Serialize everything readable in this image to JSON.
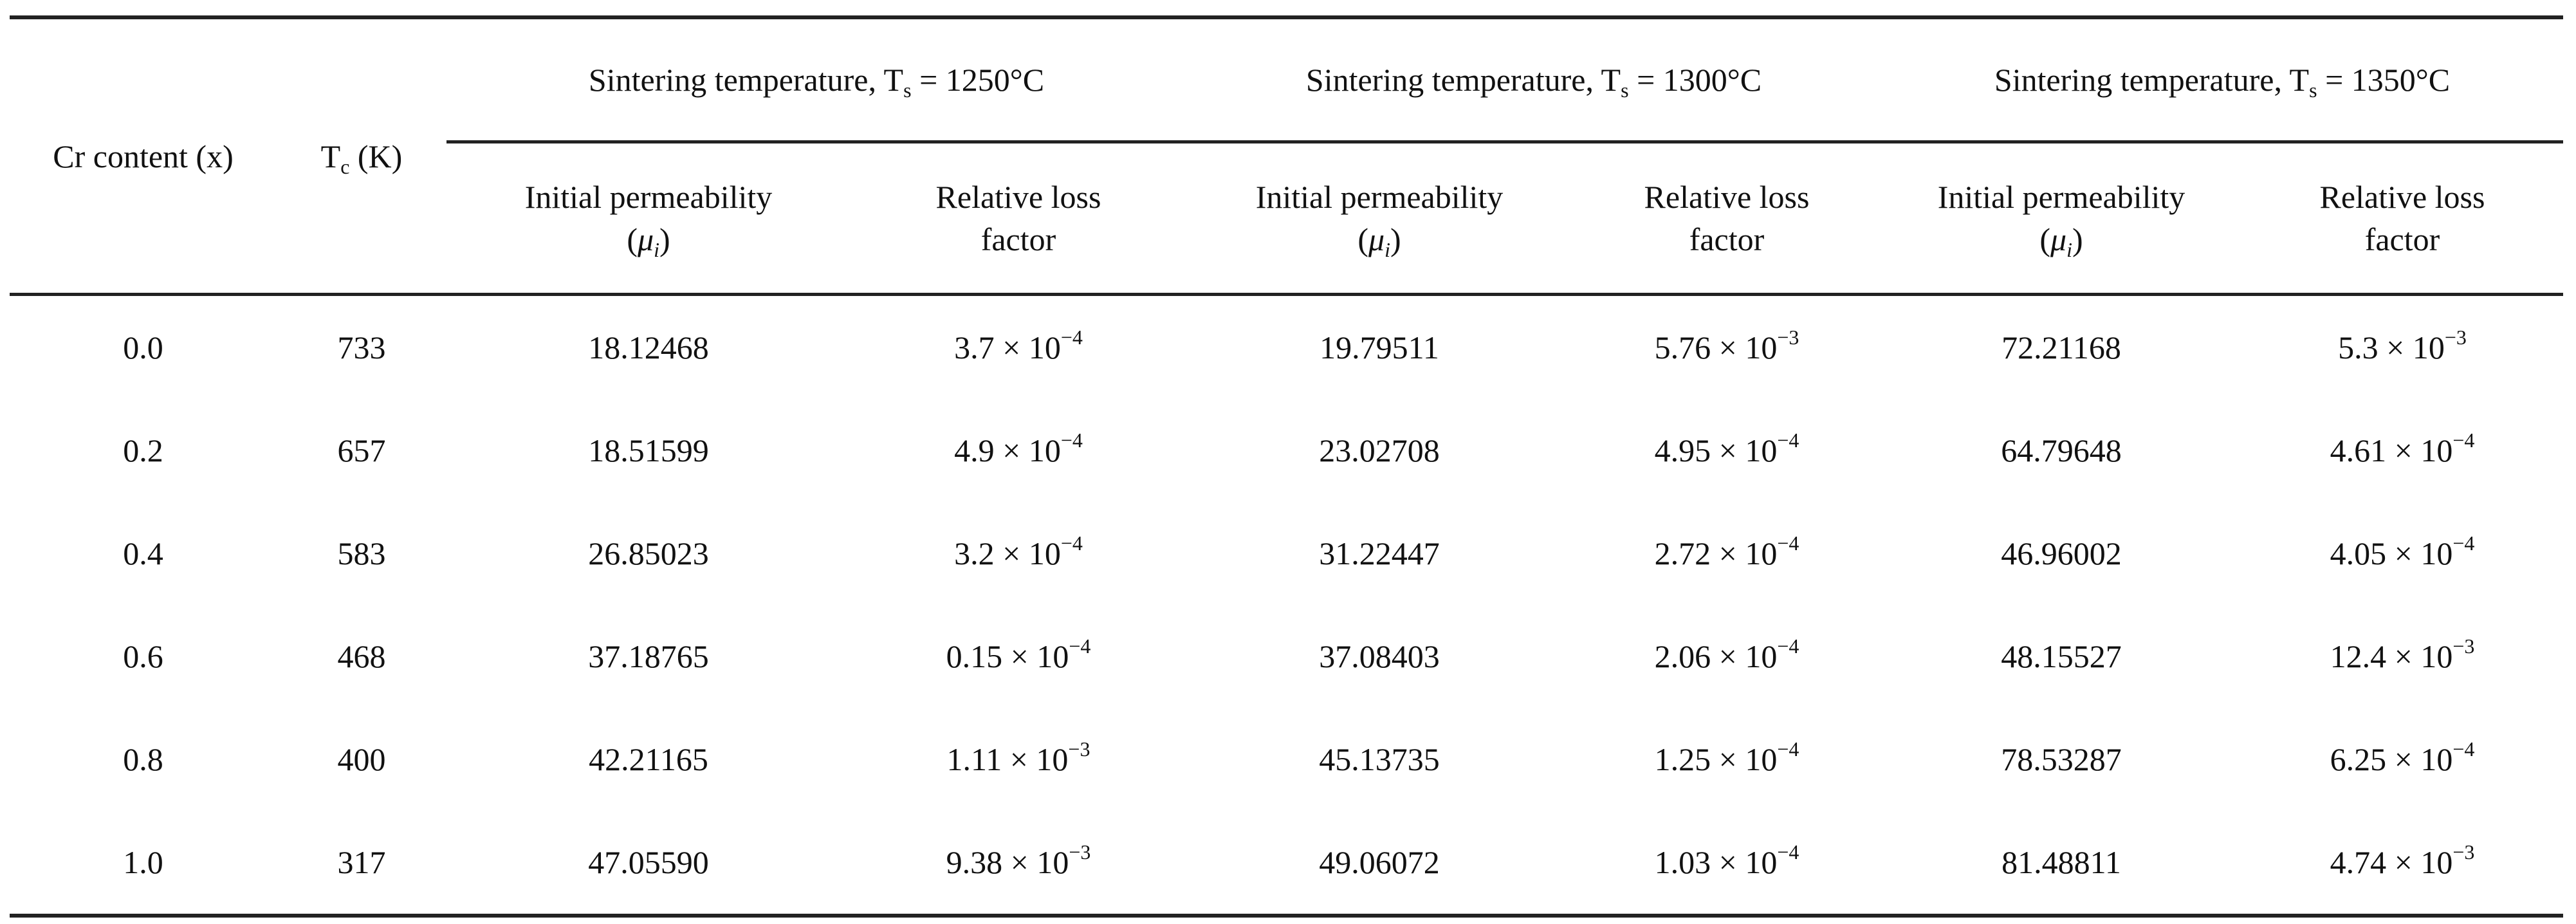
{
  "table": {
    "headers": {
      "cr_content": "Cr content (x)",
      "tc_main": "T",
      "tc_sub": "c",
      "tc_unit": " (K)",
      "groups": [
        {
          "prefix": "Sintering temperature, T",
          "sub": "s",
          "suffix": " = 1250°C"
        },
        {
          "prefix": "Sintering temperature, T",
          "sub": "s",
          "suffix": " = 1300°C"
        },
        {
          "prefix": "Sintering temperature, T",
          "sub": "s",
          "suffix": " = 1350°C"
        }
      ],
      "perm_line1": "Initial permeability",
      "perm_open": "(",
      "perm_mu": "μ",
      "perm_mu_sub": "i",
      "perm_close": ")",
      "loss_line1": "Relative loss",
      "loss_line2": "factor"
    },
    "rows": [
      {
        "x": "0.0",
        "tc": "733",
        "cells": [
          {
            "p": "18.12468"
          },
          {
            "m": "3.7 × 10",
            "e": "−4"
          },
          {
            "p": "19.79511"
          },
          {
            "m": "5.76 × 10",
            "e": "−3"
          },
          {
            "p": "72.21168"
          },
          {
            "m": "5.3 × 10",
            "e": "−3"
          }
        ]
      },
      {
        "x": "0.2",
        "tc": "657",
        "cells": [
          {
            "p": "18.51599"
          },
          {
            "m": "4.9 × 10",
            "e": "−4"
          },
          {
            "p": "23.02708"
          },
          {
            "m": "4.95 × 10",
            "e": "−4"
          },
          {
            "p": "64.79648"
          },
          {
            "m": "4.61 × 10",
            "e": "−4"
          }
        ]
      },
      {
        "x": "0.4",
        "tc": "583",
        "cells": [
          {
            "p": "26.85023"
          },
          {
            "m": "3.2 × 10",
            "e": "−4"
          },
          {
            "p": "31.22447"
          },
          {
            "m": "2.72 × 10",
            "e": "−4"
          },
          {
            "p": "46.96002"
          },
          {
            "m": "4.05 × 10",
            "e": "−4"
          }
        ]
      },
      {
        "x": "0.6",
        "tc": "468",
        "cells": [
          {
            "p": "37.18765"
          },
          {
            "m": "0.15 × 10",
            "e": "−4"
          },
          {
            "p": "37.08403"
          },
          {
            "m": "2.06 × 10",
            "e": "−4"
          },
          {
            "p": "48.15527"
          },
          {
            "m": "12.4 × 10",
            "e": "−3"
          }
        ]
      },
      {
        "x": "0.8",
        "tc": "400",
        "cells": [
          {
            "p": "42.21165"
          },
          {
            "m": "1.11 × 10",
            "e": "−3"
          },
          {
            "p": "45.13735"
          },
          {
            "m": "1.25 × 10",
            "e": "−4"
          },
          {
            "p": "78.53287"
          },
          {
            "m": "6.25 × 10",
            "e": "−4"
          }
        ]
      },
      {
        "x": "1.0",
        "tc": "317",
        "cells": [
          {
            "p": "47.05590"
          },
          {
            "m": "9.38 × 10",
            "e": "−3"
          },
          {
            "p": "49.06072"
          },
          {
            "m": "1.03 × 10",
            "e": "−4"
          },
          {
            "p": "81.48811"
          },
          {
            "m": "4.74 × 10",
            "e": "−3"
          }
        ]
      }
    ]
  }
}
